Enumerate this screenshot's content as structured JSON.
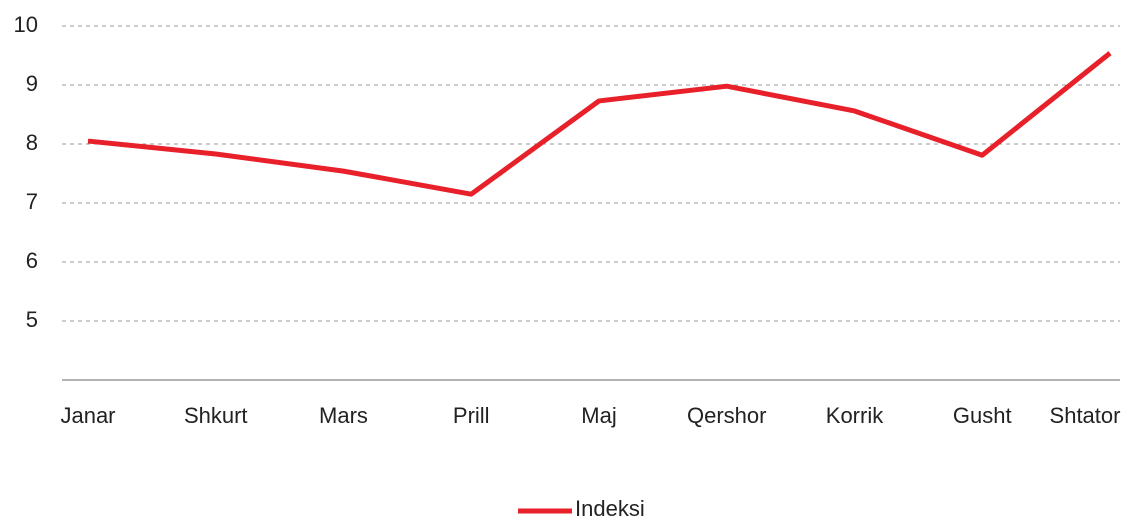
{
  "chart_data": {
    "type": "line",
    "categories": [
      "Janar",
      "Shkurt",
      "Mars",
      "Prill",
      "Maj",
      "Qershor",
      "Korrik",
      "Gusht",
      "Shtator"
    ],
    "series": [
      {
        "name": "Indeksi",
        "color": "#e8202a",
        "values": [
          8.05,
          7.83,
          7.54,
          7.15,
          8.73,
          8.98,
          8.56,
          7.81,
          9.54
        ]
      }
    ],
    "ylim": [
      4,
      10
    ],
    "yticks": [
      5,
      6,
      7,
      8,
      9,
      10
    ],
    "grid": true,
    "legend": "bottom"
  }
}
